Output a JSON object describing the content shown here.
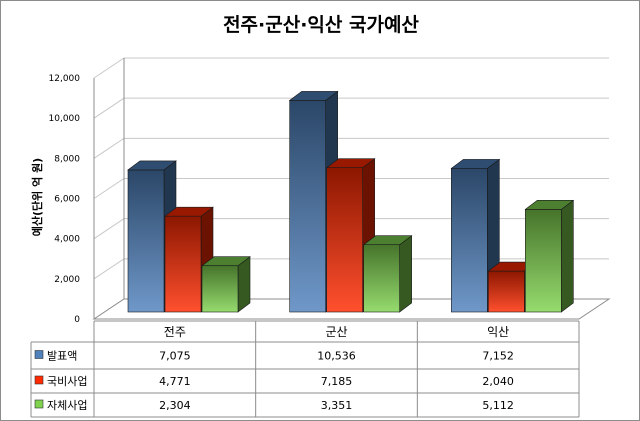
{
  "chart_data": {
    "type": "bar",
    "title": "전주·군산·익산 국가예산",
    "ylabel": "예산(단위 억 원)",
    "xlabel": "",
    "categories": [
      "전주",
      "군산",
      "익산"
    ],
    "ylim": [
      0,
      12000
    ],
    "yticks": [
      "0",
      "2,000",
      "4,000",
      "6,000",
      "8,000",
      "10,000",
      "12,000"
    ],
    "grid": true,
    "legend": "data-table",
    "three_d": true,
    "series": [
      {
        "name": "발표액",
        "values": [
          7075,
          10536,
          7152
        ],
        "labels": [
          "7,075",
          "10,536",
          "7,152"
        ],
        "color": "#4f81bd"
      },
      {
        "name": "국비사업",
        "values": [
          4771,
          7185,
          2040
        ],
        "labels": [
          "4,771",
          "7,185",
          "2,040"
        ],
        "color": "#ff2a00"
      },
      {
        "name": "자체사업",
        "values": [
          2304,
          3351,
          5112
        ],
        "labels": [
          "2,304",
          "3,351",
          "5,112"
        ],
        "color": "#7fd34e"
      }
    ]
  }
}
